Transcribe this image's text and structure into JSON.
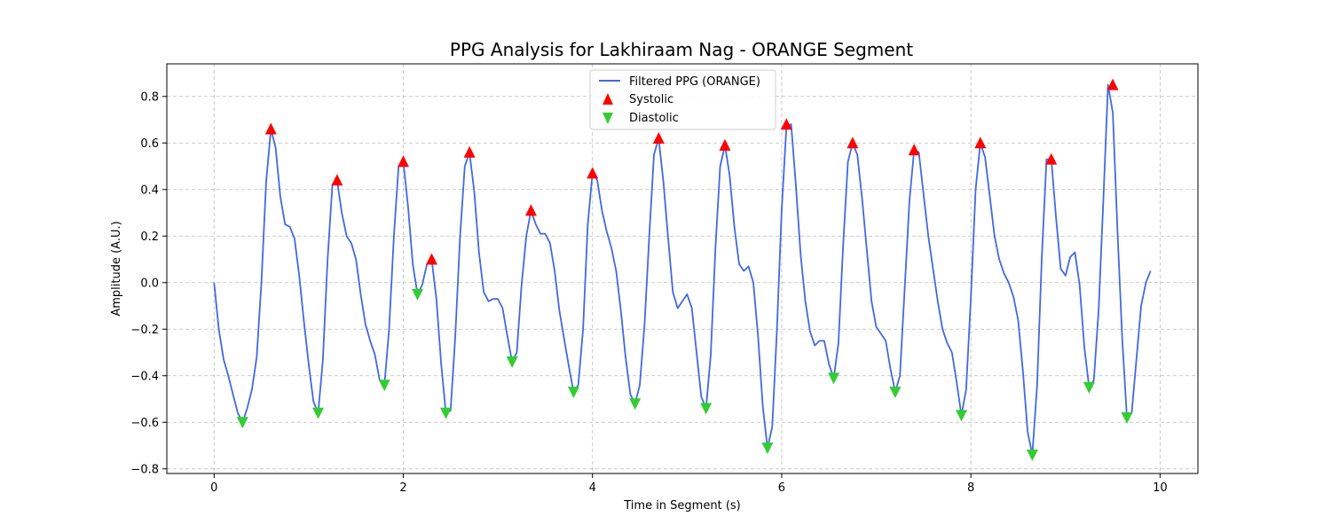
{
  "chart_data": {
    "type": "line",
    "title": "PPG Analysis for Lakhiraam Nag - ORANGE Segment",
    "xlabel": "Time in Segment (s)",
    "ylabel": "Amplitude (A.U.)",
    "xlim": [
      -0.5,
      10.4
    ],
    "ylim": [
      -0.82,
      0.94
    ],
    "xticks": [
      0,
      2,
      4,
      6,
      8,
      10
    ],
    "xtick_labels": [
      "0",
      "2",
      "4",
      "6",
      "8",
      "10"
    ],
    "yticks": [
      -0.8,
      -0.6,
      -0.4,
      -0.2,
      0.0,
      0.2,
      0.4,
      0.6,
      0.8
    ],
    "ytick_labels": [
      "−0.8",
      "−0.6",
      "−0.4",
      "−0.2",
      "0.0",
      "0.2",
      "0.4",
      "0.6",
      "0.8"
    ],
    "grid": true,
    "legend_position": "top-center",
    "colors": {
      "line": "#4169e1",
      "systolic": "#ff0000",
      "diastolic": "#32cd32"
    },
    "series": [
      {
        "name": "Filtered PPG (ORANGE)",
        "kind": "line",
        "x": [
          0.0,
          0.05,
          0.1,
          0.15,
          0.2,
          0.25,
          0.3,
          0.35,
          0.4,
          0.45,
          0.5,
          0.55,
          0.6,
          0.65,
          0.7,
          0.75,
          0.8,
          0.85,
          0.9,
          0.95,
          1.0,
          1.05,
          1.1,
          1.15,
          1.2,
          1.25,
          1.3,
          1.35,
          1.4,
          1.45,
          1.5,
          1.55,
          1.6,
          1.65,
          1.7,
          1.75,
          1.8,
          1.85,
          1.9,
          1.95,
          2.0,
          2.05,
          2.1,
          2.15,
          2.2,
          2.25,
          2.3,
          2.35,
          2.4,
          2.45,
          2.5,
          2.55,
          2.6,
          2.65,
          2.7,
          2.75,
          2.8,
          2.85,
          2.9,
          2.95,
          3.0,
          3.05,
          3.1,
          3.15,
          3.2,
          3.25,
          3.3,
          3.35,
          3.4,
          3.45,
          3.5,
          3.55,
          3.6,
          3.65,
          3.7,
          3.75,
          3.8,
          3.85,
          3.9,
          3.95,
          4.0,
          4.05,
          4.1,
          4.15,
          4.2,
          4.25,
          4.3,
          4.35,
          4.4,
          4.45,
          4.5,
          4.55,
          4.6,
          4.65,
          4.7,
          4.75,
          4.8,
          4.85,
          4.9,
          4.95,
          5.0,
          5.05,
          5.1,
          5.15,
          5.2,
          5.25,
          5.3,
          5.35,
          5.4,
          5.45,
          5.5,
          5.55,
          5.6,
          5.65,
          5.7,
          5.75,
          5.8,
          5.85,
          5.9,
          5.95,
          6.0,
          6.05,
          6.1,
          6.15,
          6.2,
          6.25,
          6.3,
          6.35,
          6.4,
          6.45,
          6.5,
          6.55,
          6.6,
          6.65,
          6.7,
          6.75,
          6.8,
          6.85,
          6.9,
          6.95,
          7.0,
          7.05,
          7.1,
          7.15,
          7.2,
          7.25,
          7.3,
          7.35,
          7.4,
          7.45,
          7.5,
          7.55,
          7.6,
          7.65,
          7.7,
          7.75,
          7.8,
          7.85,
          7.9,
          7.95,
          8.0,
          8.05,
          8.1,
          8.15,
          8.2,
          8.25,
          8.3,
          8.35,
          8.4,
          8.45,
          8.5,
          8.55,
          8.6,
          8.65,
          8.7,
          8.75,
          8.8,
          8.85,
          8.9,
          8.95,
          9.0,
          9.05,
          9.1,
          9.15,
          9.2,
          9.25,
          9.3,
          9.35,
          9.4,
          9.45,
          9.5,
          9.55,
          9.6,
          9.65,
          9.7,
          9.75,
          9.8,
          9.85,
          9.9
        ],
        "y": [
          0.0,
          -0.2,
          -0.33,
          -0.4,
          -0.48,
          -0.56,
          -0.6,
          -0.54,
          -0.46,
          -0.32,
          0.0,
          0.43,
          0.66,
          0.58,
          0.37,
          0.25,
          0.24,
          0.19,
          0.03,
          -0.17,
          -0.35,
          -0.51,
          -0.56,
          -0.33,
          0.1,
          0.42,
          0.44,
          0.3,
          0.2,
          0.17,
          0.1,
          -0.05,
          -0.18,
          -0.25,
          -0.31,
          -0.42,
          -0.44,
          -0.2,
          0.2,
          0.5,
          0.52,
          0.33,
          0.08,
          -0.05,
          -0.01,
          0.08,
          0.1,
          -0.07,
          -0.35,
          -0.56,
          -0.55,
          -0.23,
          0.2,
          0.5,
          0.56,
          0.39,
          0.13,
          -0.04,
          -0.08,
          -0.07,
          -0.07,
          -0.11,
          -0.23,
          -0.34,
          -0.3,
          -0.01,
          0.2,
          0.31,
          0.25,
          0.21,
          0.21,
          0.17,
          0.05,
          -0.12,
          -0.24,
          -0.36,
          -0.47,
          -0.44,
          -0.2,
          0.25,
          0.47,
          0.44,
          0.31,
          0.22,
          0.15,
          0.05,
          -0.12,
          -0.32,
          -0.48,
          -0.52,
          -0.44,
          -0.18,
          0.2,
          0.55,
          0.62,
          0.43,
          0.19,
          -0.04,
          -0.11,
          -0.08,
          -0.05,
          -0.11,
          -0.3,
          -0.49,
          -0.54,
          -0.31,
          0.15,
          0.5,
          0.59,
          0.46,
          0.24,
          0.08,
          0.05,
          0.07,
          0.0,
          -0.23,
          -0.53,
          -0.71,
          -0.62,
          -0.2,
          0.31,
          0.67,
          0.68,
          0.42,
          0.12,
          -0.08,
          -0.21,
          -0.27,
          -0.25,
          -0.25,
          -0.35,
          -0.41,
          -0.26,
          0.16,
          0.52,
          0.6,
          0.55,
          0.36,
          0.14,
          -0.08,
          -0.19,
          -0.22,
          -0.25,
          -0.37,
          -0.47,
          -0.4,
          -0.03,
          0.35,
          0.57,
          0.56,
          0.38,
          0.2,
          0.06,
          -0.08,
          -0.2,
          -0.26,
          -0.3,
          -0.43,
          -0.57,
          -0.46,
          -0.07,
          0.4,
          0.6,
          0.54,
          0.37,
          0.2,
          0.1,
          0.04,
          0.0,
          -0.06,
          -0.16,
          -0.38,
          -0.64,
          -0.74,
          -0.44,
          0.11,
          0.53,
          0.53,
          0.28,
          0.06,
          0.03,
          0.11,
          0.13,
          -0.01,
          -0.28,
          -0.45,
          -0.42,
          -0.12,
          0.35,
          0.85,
          0.73,
          0.22,
          -0.24,
          -0.58,
          -0.56,
          -0.33,
          -0.1,
          0.0,
          0.05
        ]
      },
      {
        "name": "Systolic",
        "kind": "marker-up",
        "x": [
          0.6,
          1.3,
          2.0,
          2.3,
          2.7,
          3.35,
          4.0,
          4.7,
          5.4,
          6.05,
          6.75,
          7.4,
          8.1,
          8.85,
          9.5
        ],
        "y": [
          0.66,
          0.44,
          0.52,
          0.1,
          0.56,
          0.31,
          0.47,
          0.62,
          0.59,
          0.68,
          0.6,
          0.57,
          0.6,
          0.53,
          0.85
        ]
      },
      {
        "name": "Diastolic",
        "kind": "marker-down",
        "x": [
          0.3,
          1.1,
          1.8,
          2.15,
          2.45,
          3.15,
          3.8,
          4.45,
          5.2,
          5.85,
          6.55,
          7.2,
          7.9,
          8.65,
          9.25,
          9.65
        ],
        "y": [
          -0.6,
          -0.56,
          -0.44,
          -0.05,
          -0.56,
          -0.34,
          -0.47,
          -0.52,
          -0.54,
          -0.71,
          -0.41,
          -0.47,
          -0.57,
          -0.74,
          -0.45,
          -0.58
        ]
      }
    ]
  }
}
